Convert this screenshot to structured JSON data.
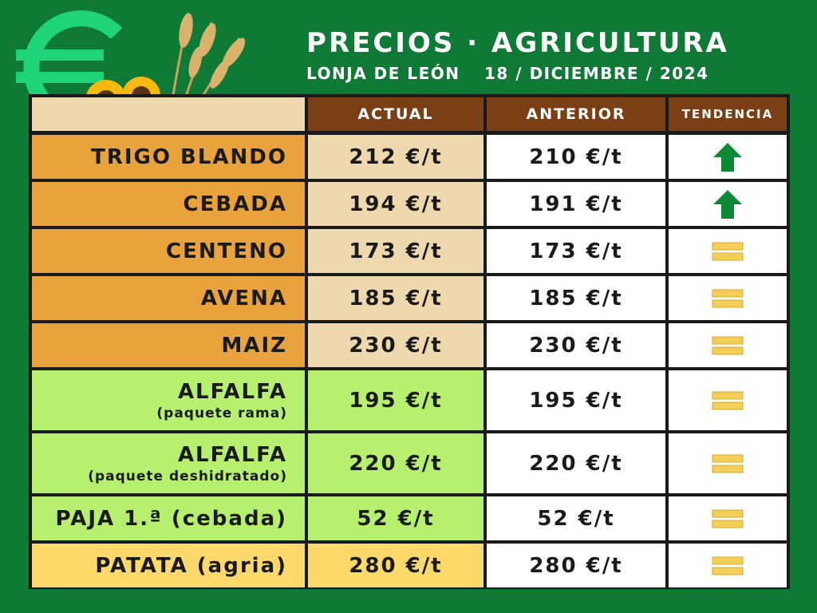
{
  "header": {
    "title": "PRECIOS · AGRICULTURA",
    "market": "LONJA DE LEÓN",
    "date": "18 / DICIEMBRE / 2024"
  },
  "table": {
    "columns": [
      "ACTUAL",
      "ANTERIOR",
      "TENDENCIA"
    ],
    "rows": [
      {
        "name": "TRIGO BLANDO",
        "sub": "",
        "actual": "212 €/t",
        "anterior": "210 €/t",
        "trend": "up-arrow-icon",
        "group": "cereal"
      },
      {
        "name": "CEBADA",
        "sub": "",
        "actual": "194 €/t",
        "anterior": "191 €/t",
        "trend": "up-arrow-icon",
        "group": "cereal"
      },
      {
        "name": "CENTENO",
        "sub": "",
        "actual": "173 €/t",
        "anterior": "173 €/t",
        "trend": "equal-icon",
        "group": "cereal"
      },
      {
        "name": "AVENA",
        "sub": "",
        "actual": "185 €/t",
        "anterior": "185 €/t",
        "trend": "equal-icon",
        "group": "cereal"
      },
      {
        "name": "MAIZ",
        "sub": "",
        "actual": "230 €/t",
        "anterior": "230 €/t",
        "trend": "equal-icon",
        "group": "cereal"
      },
      {
        "name": "ALFALFA",
        "sub": "(paquete rama)",
        "actual": "195 €/t",
        "anterior": "195 €/t",
        "trend": "equal-icon",
        "group": "forraje"
      },
      {
        "name": "ALFALFA",
        "sub": "(paquete deshidratado)",
        "actual": "220 €/t",
        "anterior": "220 €/t",
        "trend": "equal-icon",
        "group": "forraje"
      },
      {
        "name": "PAJA 1.ª (cebada)",
        "sub": "",
        "actual": "52 €/t",
        "anterior": "52 €/t",
        "trend": "equal-icon",
        "group": "forraje"
      },
      {
        "name": "PATATA (agria)",
        "sub": "",
        "actual": "280 €/t",
        "anterior": "280 €/t",
        "trend": "equal-icon",
        "group": "patata"
      }
    ]
  },
  "colors": {
    "background": "#0e7a36",
    "header_cell": "#7a3f14",
    "cereal_name": "#e8a33d",
    "cereal_actual": "#eed8ae",
    "forraje": "#b6f06e",
    "patata": "#fdd96b",
    "white": "#ffffff",
    "trend_up": "#0e8a36",
    "trend_equal": "#f3cf57",
    "euro": "#1fd37a"
  },
  "icons": [
    "euro-icon",
    "sunflower-icon",
    "wheat-icon",
    "up-arrow-icon",
    "equal-icon"
  ]
}
